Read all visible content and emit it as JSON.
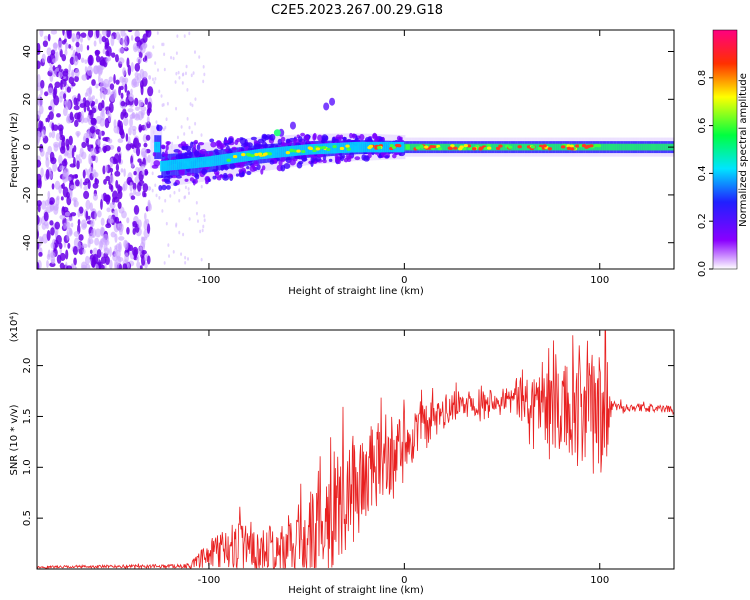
{
  "figure": {
    "title": "C2E5.2023.267.00.29.G18"
  },
  "chart_data": [
    {
      "type": "heatmap",
      "xlabel": "Height of straight line (km)",
      "ylabel": "Frequency (Hz)",
      "xlim": [
        -188,
        138
      ],
      "ylim": [
        -51,
        49
      ],
      "xticks": [
        -100,
        0,
        100
      ],
      "yticks": [
        -40,
        -20,
        0,
        20,
        40
      ],
      "colorbar": {
        "label": "Normalized spectral amplitude",
        "range": [
          0,
          1
        ],
        "ticks": [
          0.0,
          0.2,
          0.4,
          0.6,
          0.8
        ],
        "colormap": [
          "#ffffff",
          "#8a00ff",
          "#2020ff",
          "#00e5ff",
          "#00ff40",
          "#ffff00",
          "#ff3000",
          "#ff0080"
        ]
      },
      "features": {
        "noise_region_x": [
          -188,
          -130
        ],
        "trace_points": [
          {
            "x": -125,
            "freq": -8
          },
          {
            "x": -100,
            "freq": -6
          },
          {
            "x": -75,
            "freq": -3
          },
          {
            "x": -50,
            "freq": -1
          },
          {
            "x": -25,
            "freq": 0
          },
          {
            "x": 0,
            "freq": 0
          },
          {
            "x": 50,
            "freq": 0
          },
          {
            "x": 100,
            "freq": 0
          },
          {
            "x": 138,
            "freq": 0
          }
        ]
      }
    },
    {
      "type": "line",
      "xlabel": "Height of straight line (km)",
      "ylabel": "SNR (10 * v/v)",
      "yscale_label": "(x10⁴)",
      "xlim": [
        -188,
        138
      ],
      "ylim": [
        0,
        2.35
      ],
      "xticks": [
        -100,
        0,
        100
      ],
      "yticks": [
        0.5,
        1.0,
        1.5,
        2.0
      ],
      "ytick_labels": [
        "0.5",
        "1.0",
        "1.5",
        "2.0"
      ],
      "color": "#ff0000",
      "envelope": [
        {
          "x": -188,
          "mean": 0.02,
          "amp": 0.01
        },
        {
          "x": -110,
          "mean": 0.03,
          "amp": 0.02
        },
        {
          "x": -95,
          "mean": 0.18,
          "amp": 0.2
        },
        {
          "x": -80,
          "mean": 0.2,
          "amp": 0.3
        },
        {
          "x": -65,
          "mean": 0.15,
          "amp": 0.25
        },
        {
          "x": -50,
          "mean": 0.35,
          "amp": 0.45
        },
        {
          "x": -35,
          "mean": 0.6,
          "amp": 0.6
        },
        {
          "x": -20,
          "mean": 0.9,
          "amp": 0.5
        },
        {
          "x": 0,
          "mean": 1.25,
          "amp": 0.3
        },
        {
          "x": 25,
          "mean": 1.6,
          "amp": 0.15
        },
        {
          "x": 50,
          "mean": 1.68,
          "amp": 0.1
        },
        {
          "x": 70,
          "mean": 1.65,
          "amp": 0.35
        },
        {
          "x": 90,
          "mean": 1.5,
          "amp": 0.55
        },
        {
          "x": 104,
          "mean": 1.55,
          "amp": 0.7
        },
        {
          "x": 106,
          "mean": 1.6,
          "amp": 0.05
        },
        {
          "x": 138,
          "mean": 1.57,
          "amp": 0.03
        }
      ]
    }
  ]
}
